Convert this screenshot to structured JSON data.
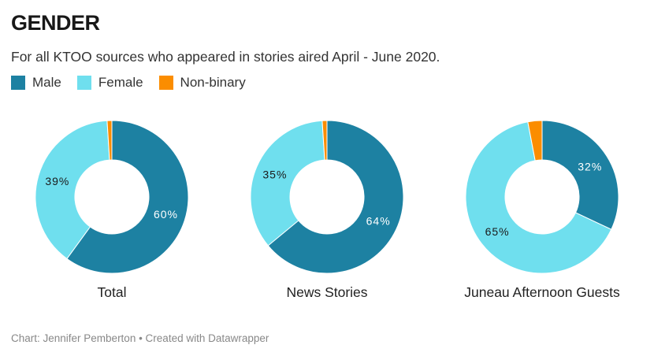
{
  "header": {
    "title": "GENDER",
    "subtitle": "For all KTOO sources who appeared in stories aired April - June 2020."
  },
  "footer": "Chart: Jennifer Pemberton • Created with Datawrapper",
  "chart_data": {
    "type": "pie",
    "variant": "donut",
    "legend_position": "top-left",
    "series": [
      {
        "name": "Male",
        "color": "#1d81a2"
      },
      {
        "name": "Female",
        "color": "#6fdfee"
      },
      {
        "name": "Non-binary",
        "color": "#fb8d00"
      }
    ],
    "charts": [
      {
        "label": "Total",
        "values": [
          60,
          39,
          1
        ],
        "data_labels": [
          "60%",
          "39%",
          ""
        ]
      },
      {
        "label": "News Stories",
        "values": [
          64,
          35,
          1
        ],
        "data_labels": [
          "64%",
          "35%",
          ""
        ]
      },
      {
        "label": "Juneau Afternoon Guests",
        "values": [
          32,
          65,
          3
        ],
        "data_labels": [
          "32%",
          "65%",
          ""
        ]
      }
    ]
  }
}
